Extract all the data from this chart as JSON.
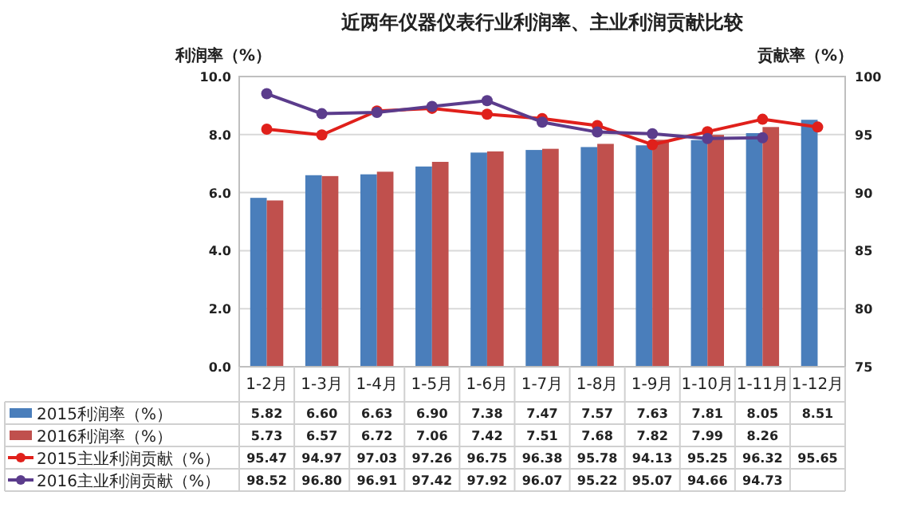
{
  "chart_data": {
    "type": "bar",
    "title": "近两年仪器仪表行业利润率、主业利润贡献比较",
    "ylabel": "利润率（%）",
    "y2label": "贡献率（%）",
    "categories": [
      "1-2月",
      "1-3月",
      "1-4月",
      "1-5月",
      "1-6月",
      "1-7月",
      "1-8月",
      "1-9月",
      "1-10月",
      "1-11月",
      "1-12月"
    ],
    "series": [
      {
        "name": "2015利润率（%）",
        "color": "#4a7ebb",
        "values": [
          5.82,
          6.6,
          6.63,
          6.9,
          7.38,
          7.47,
          7.57,
          7.63,
          7.81,
          8.05,
          8.51
        ],
        "value_labels": [
          "5.82",
          "6.60",
          "6.63",
          "6.90",
          "7.38",
          "7.47",
          "7.57",
          "7.63",
          "7.81",
          "8.05",
          "8.51"
        ]
      },
      {
        "name": "2016利润率（%）",
        "color": "#c0504d",
        "values": [
          5.73,
          6.57,
          6.72,
          7.06,
          7.42,
          7.51,
          7.68,
          7.82,
          7.99,
          8.26,
          null
        ],
        "value_labels": [
          "5.73",
          "6.57",
          "6.72",
          "7.06",
          "7.42",
          "7.51",
          "7.68",
          "7.82",
          "7.99",
          "8.26",
          null
        ]
      },
      {
        "name": "2015主业利润贡献（%）",
        "type": "line",
        "axis": "y2",
        "color": "#e0201b",
        "values": [
          95.47,
          94.97,
          97.03,
          97.26,
          96.75,
          96.38,
          95.78,
          94.13,
          95.25,
          96.32,
          95.65
        ],
        "value_labels": [
          "95.47",
          "94.97",
          "97.03",
          "97.26",
          "96.75",
          "96.38",
          "95.78",
          "94.13",
          "95.25",
          "96.32",
          "95.65"
        ]
      },
      {
        "name": "2016主业利润贡献（%）",
        "type": "line",
        "axis": "y2",
        "color": "#5b3c8c",
        "values": [
          98.52,
          96.8,
          96.91,
          97.42,
          97.92,
          96.07,
          95.22,
          95.07,
          94.66,
          94.73,
          null
        ],
        "value_labels": [
          "98.52",
          "96.80",
          "96.91",
          "97.42",
          "97.92",
          "96.07",
          "95.22",
          "95.07",
          "94.66",
          "94.73",
          null
        ]
      }
    ],
    "ylim": [
      0,
      10
    ],
    "yticks": [
      {
        "value": 0,
        "label": "0.0"
      },
      {
        "value": 2,
        "label": "2.0"
      },
      {
        "value": 4,
        "label": "4.0"
      },
      {
        "value": 6,
        "label": "6.0"
      },
      {
        "value": 8,
        "label": "8.0"
      },
      {
        "value": 10,
        "label": "10.0"
      }
    ],
    "y2lim": [
      75,
      100
    ],
    "y2ticks": [
      75,
      80,
      85,
      90,
      95,
      100
    ],
    "grid": "y",
    "marker": "circle",
    "legend": "bottom"
  }
}
